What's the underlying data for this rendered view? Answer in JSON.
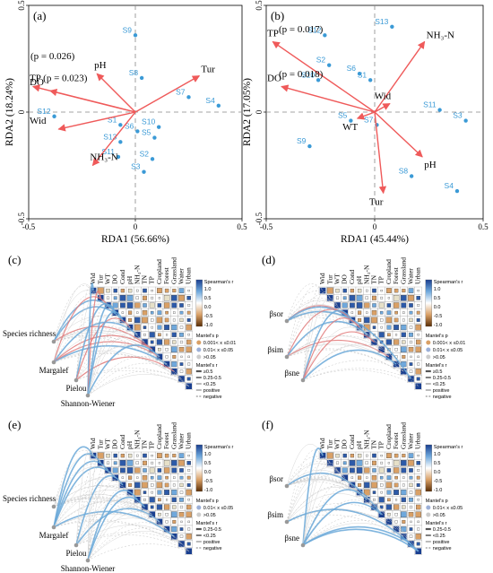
{
  "colors": {
    "site": "#3b9ad6",
    "arrow": "#ef5a5a",
    "grid": "#888888",
    "positive_link": "#6aa8d8",
    "negative_link": "#bbbbbb",
    "mantel_red": "#e27a7a",
    "heat_pos": "#1a3f8f",
    "heat_neg": "#8b4a10"
  },
  "chart_data": [
    {
      "type": "scatter",
      "panel": "(a)",
      "xlabel": "RDA1 (56.66%)",
      "ylabel": "RDA2 (18.24%)",
      "xlim": [
        -0.5,
        0.5
      ],
      "ylim": [
        -0.5,
        0.5
      ],
      "xticks": [
        "-0.5",
        "0",
        "0.5"
      ],
      "yticks": [
        "-0.5",
        "0",
        "0.5"
      ],
      "sites": [
        {
          "label": "S9",
          "x": 0.0,
          "y": 0.36
        },
        {
          "label": "S8",
          "x": 0.03,
          "y": 0.16
        },
        {
          "label": "S7",
          "x": 0.25,
          "y": 0.07
        },
        {
          "label": "S4",
          "x": 0.39,
          "y": 0.03
        },
        {
          "label": "S12",
          "x": -0.38,
          "y": -0.02
        },
        {
          "label": "S1",
          "x": -0.07,
          "y": -0.06
        },
        {
          "label": "S6",
          "x": 0.01,
          "y": -0.09
        },
        {
          "label": "S10",
          "x": 0.11,
          "y": -0.07
        },
        {
          "label": "S5",
          "x": 0.09,
          "y": -0.12
        },
        {
          "label": "S13",
          "x": -0.07,
          "y": -0.14
        },
        {
          "label": "S11",
          "x": -0.08,
          "y": -0.21
        },
        {
          "label": "S2",
          "x": 0.08,
          "y": -0.22
        },
        {
          "label": "S3",
          "x": 0.04,
          "y": -0.28
        }
      ],
      "vectors": [
        {
          "label": "pH",
          "x": -0.18,
          "y": 0.18
        },
        {
          "label": "DO",
          "x": -0.4,
          "y": 0.1
        },
        {
          "label": "TP (p = 0.023)",
          "x": -0.48,
          "y": 0.12
        },
        {
          "label": "Wid",
          "x": -0.36,
          "y": -0.08
        },
        {
          "label": "NH₃-N",
          "x": -0.2,
          "y": -0.25
        },
        {
          "label": "Tur",
          "x": 0.3,
          "y": 0.17
        }
      ],
      "annotations": [
        "(p = 0.026)"
      ]
    },
    {
      "type": "scatter",
      "panel": "(b)",
      "xlabel": "RDA1 (45.44%)",
      "ylabel": "RDA2 (17.05%)",
      "xlim": [
        -0.5,
        0.5
      ],
      "ylim": [
        -0.5,
        0.5
      ],
      "xticks": [
        "-0.5",
        "0",
        "0.5"
      ],
      "yticks": [
        "-0.5",
        "0",
        "0.5"
      ],
      "sites": [
        {
          "label": "S13",
          "x": 0.08,
          "y": 0.4
        },
        {
          "label": "S12",
          "x": -0.23,
          "y": 0.36
        },
        {
          "label": "S2",
          "x": -0.21,
          "y": 0.22
        },
        {
          "label": "S6",
          "x": -0.07,
          "y": 0.18
        },
        {
          "label": "S10",
          "x": -0.26,
          "y": 0.15
        },
        {
          "label": "S1",
          "x": -0.02,
          "y": 0.15
        },
        {
          "label": "S11",
          "x": 0.3,
          "y": 0.01
        },
        {
          "label": "S3",
          "x": 0.42,
          "y": -0.04
        },
        {
          "label": "S5",
          "x": -0.11,
          "y": -0.04
        },
        {
          "label": "S7",
          "x": 0.01,
          "y": -0.06
        },
        {
          "label": "S9",
          "x": -0.3,
          "y": -0.16
        },
        {
          "label": "S8",
          "x": 0.17,
          "y": -0.3
        },
        {
          "label": "S4",
          "x": 0.38,
          "y": -0.37
        }
      ],
      "vectors": [
        {
          "label": "TP",
          "x": -0.47,
          "y": 0.33
        },
        {
          "label": "DO",
          "x": -0.43,
          "y": 0.12
        },
        {
          "label": "NH₃-N",
          "x": 0.23,
          "y": 0.33
        },
        {
          "label": "Wid",
          "x": 0.07,
          "y": 0.04
        },
        {
          "label": "WT",
          "x": -0.08,
          "y": -0.03
        },
        {
          "label": "pH",
          "x": 0.22,
          "y": -0.21
        },
        {
          "label": "Tur",
          "x": 0.04,
          "y": -0.38
        }
      ],
      "annotations": [
        "(p = 0.017)",
        "(p = 0.018)"
      ]
    }
  ],
  "env_vars": [
    "Wid",
    "Tur",
    "WT",
    "DO",
    "Cond",
    "pH",
    "NH₃-N",
    "TN",
    "TP",
    "Cropland",
    "Forest",
    "Grassland",
    "Water",
    "Urban"
  ],
  "mantel_panels": [
    {
      "panel": "(c)",
      "nodes": [
        "Species richness",
        "Margalef",
        "Pielou",
        "Shannon-Wiener"
      ],
      "legend": {
        "spearman_title": "Spearman's r",
        "spearman_ticks": [
          "1.0",
          "0.5",
          "0.0",
          "-0.5",
          "-1.0"
        ],
        "mantel_p_title": "Mantel's p",
        "mantel_p_items": [
          "0.001< x ≤0.01",
          "0.01< x ≤0.05",
          ">0.05"
        ],
        "mantel_r_title": "Mantel's r",
        "mantel_r_items": [
          "≥0.5",
          "0.25-0.5",
          "<0.25"
        ],
        "sign_items": [
          "positive",
          "negative"
        ]
      }
    },
    {
      "panel": "(d)",
      "nodes": [
        "βsor",
        "βsim",
        "βsne"
      ],
      "legend": {
        "spearman_title": "Spearman's r",
        "spearman_ticks": [
          "1.0",
          "0.5",
          "0.0",
          "-0.5",
          "-1.0"
        ],
        "mantel_p_title": "Mantel's p",
        "mantel_p_items": [
          "0.001< x ≤0.01",
          "0.01< x ≤0.05",
          ">0.05"
        ],
        "mantel_r_title": "Mantel's r",
        "mantel_r_items": [
          "≥0.5",
          "0.25-0.5",
          "<0.25"
        ],
        "sign_items": [
          "positive",
          "negative"
        ]
      }
    },
    {
      "panel": "(e)",
      "nodes": [
        "Species richness",
        "Margalef",
        "Pielou",
        "Shannon-Wiener"
      ],
      "legend": {
        "spearman_title": "Spearman's r",
        "spearman_ticks": [
          "1.0",
          "0.5",
          "0.0",
          "-0.5",
          "-1.0"
        ],
        "mantel_p_title": "Mantel's p",
        "mantel_p_items": [
          "0.01< x ≤0.05",
          ">0.05"
        ],
        "mantel_r_title": "Mantel's r",
        "mantel_r_items": [
          "0.25-0.5",
          "<0.25"
        ],
        "sign_items": [
          "positive",
          "negative"
        ]
      }
    },
    {
      "panel": "(f)",
      "nodes": [
        "βsor",
        "βsim",
        "βsne"
      ],
      "legend": {
        "spearman_title": "Spearman's r",
        "spearman_ticks": [
          "1.0",
          "0.5",
          "0.0",
          "-0.5",
          "-1.0"
        ],
        "mantel_p_title": "Mantel's p",
        "mantel_p_items": [
          "0.01< x ≤0.05",
          ">0.05"
        ],
        "mantel_r_title": "Mantel's r",
        "mantel_r_items": [
          "0.25-0.5",
          "<0.25"
        ],
        "sign_items": [
          "positive",
          "negative"
        ]
      }
    }
  ]
}
